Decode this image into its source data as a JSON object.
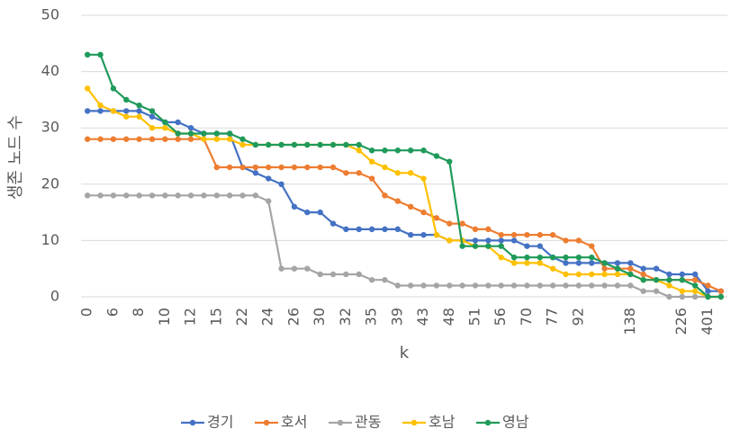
{
  "chart_data": {
    "type": "line",
    "x_label": "k",
    "y_label": "생존 노드 수",
    "categories": [
      "0",
      null,
      "6",
      null,
      "8",
      null,
      "10",
      null,
      "12",
      null,
      "15",
      null,
      "22",
      null,
      "24",
      null,
      "26",
      null,
      "30",
      null,
      "32",
      null,
      "35",
      null,
      "39",
      null,
      "43",
      null,
      "48",
      null,
      "51",
      null,
      "56",
      null,
      "70",
      null,
      "77",
      null,
      "92",
      null,
      null,
      null,
      "138",
      null,
      null,
      null,
      "226",
      null,
      "401",
      null
    ],
    "ylim": [
      0,
      50
    ],
    "yticks": [
      0,
      10,
      20,
      30,
      40,
      50
    ],
    "grid": true,
    "legend": "bottom",
    "series": [
      {
        "name": "경기",
        "color": "#4472c4",
        "values": [
          33,
          33,
          33,
          33,
          33,
          32,
          31,
          31,
          30,
          29,
          29,
          29,
          23,
          22,
          21,
          20,
          16,
          15,
          15,
          13,
          12,
          12,
          12,
          12,
          12,
          11,
          11,
          11,
          10,
          10,
          10,
          10,
          10,
          10,
          9,
          9,
          7,
          6,
          6,
          6,
          6,
          6,
          6,
          5,
          5,
          4,
          4,
          4,
          1,
          1
        ]
      },
      {
        "name": "호서",
        "color": "#ed7d31",
        "values": [
          28,
          28,
          28,
          28,
          28,
          28,
          28,
          28,
          28,
          28,
          23,
          23,
          23,
          23,
          23,
          23,
          23,
          23,
          23,
          23,
          22,
          22,
          21,
          18,
          17,
          16,
          15,
          14,
          13,
          13,
          12,
          12,
          11,
          11,
          11,
          11,
          11,
          10,
          10,
          9,
          5,
          5,
          5,
          4,
          3,
          3,
          3,
          3,
          2,
          1
        ]
      },
      {
        "name": "관동",
        "color": "#a5a5a5",
        "values": [
          18,
          18,
          18,
          18,
          18,
          18,
          18,
          18,
          18,
          18,
          18,
          18,
          18,
          18,
          17,
          5,
          5,
          5,
          4,
          4,
          4,
          4,
          3,
          3,
          2,
          2,
          2,
          2,
          2,
          2,
          2,
          2,
          2,
          2,
          2,
          2,
          2,
          2,
          2,
          2,
          2,
          2,
          2,
          1,
          1,
          0,
          0,
          0,
          0,
          0
        ]
      },
      {
        "name": "호남",
        "color": "#ffc000",
        "values": [
          37,
          34,
          33,
          32,
          32,
          30,
          30,
          29,
          29,
          28,
          28,
          28,
          27,
          27,
          27,
          27,
          27,
          27,
          27,
          27,
          27,
          26,
          24,
          23,
          22,
          22,
          21,
          11,
          10,
          10,
          9,
          9,
          7,
          6,
          6,
          6,
          5,
          4,
          4,
          4,
          4,
          4,
          4,
          3,
          3,
          2,
          1,
          1,
          0,
          0
        ]
      },
      {
        "name": "영남",
        "color": "#1f9a5a",
        "values": [
          43,
          43,
          37,
          35,
          34,
          33,
          31,
          29,
          29,
          29,
          29,
          29,
          28,
          27,
          27,
          27,
          27,
          27,
          27,
          27,
          27,
          27,
          26,
          26,
          26,
          26,
          26,
          25,
          24,
          9,
          9,
          9,
          9,
          7,
          7,
          7,
          7,
          7,
          7,
          7,
          6,
          5,
          4,
          3,
          3,
          3,
          3,
          2,
          0,
          0
        ]
      }
    ]
  }
}
